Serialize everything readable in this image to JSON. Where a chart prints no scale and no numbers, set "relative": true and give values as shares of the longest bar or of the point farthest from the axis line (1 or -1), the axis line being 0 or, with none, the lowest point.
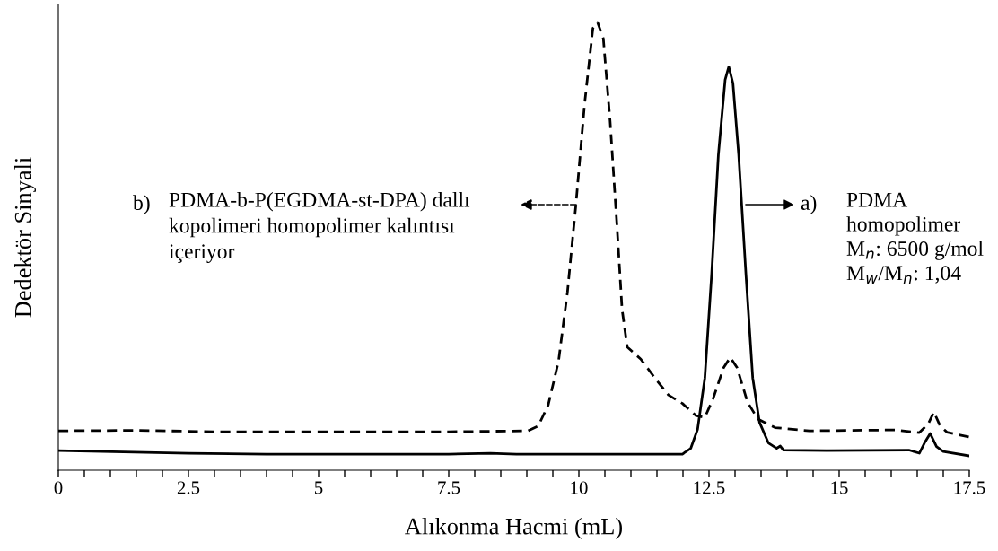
{
  "chart_data": {
    "type": "line",
    "relative": true,
    "xlabel": "Alıkonma Hacmi (mL)",
    "ylabel": "Dedektör Sinyali",
    "xlim": [
      0,
      17.5
    ],
    "xticks": [
      0,
      {
        "value": 0.5,
        "label": null
      },
      {
        "value": 1,
        "label": null
      },
      {
        "value": 1.5,
        "label": null
      },
      {
        "value": 2,
        "label": null
      },
      2.5,
      {
        "value": 3,
        "label": null
      },
      {
        "value": 3.5,
        "label": null
      },
      {
        "value": 4,
        "label": null
      },
      {
        "value": 4.5,
        "label": null
      },
      5,
      {
        "value": 5.5,
        "label": null
      },
      {
        "value": 6,
        "label": null
      },
      {
        "value": 6.5,
        "label": null
      },
      {
        "value": 7,
        "label": null
      },
      7.5,
      {
        "value": 8,
        "label": null
      },
      {
        "value": 8.5,
        "label": null
      },
      {
        "value": 9,
        "label": null
      },
      {
        "value": 9.5,
        "label": null
      },
      10,
      {
        "value": 10.5,
        "label": null
      },
      {
        "value": 11,
        "label": null
      },
      {
        "value": 11.5,
        "label": null
      },
      {
        "value": 12,
        "label": null
      },
      12.5,
      {
        "value": 13,
        "label": null
      },
      {
        "value": 13.5,
        "label": null
      },
      {
        "value": 14,
        "label": null
      },
      {
        "value": 14.5,
        "label": null
      },
      15,
      {
        "value": 15.5,
        "label": null
      },
      {
        "value": 16,
        "label": null
      },
      {
        "value": 16.5,
        "label": null
      },
      {
        "value": 17,
        "label": null
      },
      17.5
    ],
    "grid": false,
    "legend": false,
    "marker": "none",
    "tick_labels": "x",
    "series": [
      {
        "color": "#000000",
        "line_style": "dashed",
        "x": [
          0,
          1.5,
          3.0,
          5.0,
          7.5,
          9.02,
          9.22,
          9.41,
          9.61,
          9.78,
          9.94,
          10.11,
          10.27,
          10.36,
          10.47,
          10.6,
          10.73,
          10.83,
          10.93,
          11.19,
          11.46,
          11.72,
          11.99,
          12.25,
          12.42,
          12.58,
          12.78,
          12.91,
          13.04,
          13.24,
          13.44,
          13.77,
          14.43,
          16.08,
          16.54,
          16.71,
          16.82,
          16.94,
          17.07,
          17.5
        ],
        "values": [
          0.088,
          0.089,
          0.086,
          0.086,
          0.086,
          0.088,
          0.099,
          0.145,
          0.244,
          0.397,
          0.589,
          0.818,
          0.987,
          1.0,
          0.964,
          0.78,
          0.55,
          0.359,
          0.275,
          0.248,
          0.206,
          0.168,
          0.149,
          0.122,
          0.118,
          0.16,
          0.229,
          0.252,
          0.229,
          0.152,
          0.114,
          0.095,
          0.088,
          0.09,
          0.084,
          0.103,
          0.13,
          0.099,
          0.085,
          0.074
        ]
      },
      {
        "color": "#000000",
        "line_style": "solid",
        "x": [
          0,
          2.5,
          4.0,
          7.5,
          8.3,
          8.8,
          11.99,
          12.15,
          12.28,
          12.42,
          12.55,
          12.68,
          12.81,
          12.88,
          12.96,
          13.07,
          13.21,
          13.34,
          13.47,
          13.64,
          13.8,
          13.87,
          13.93,
          14.76,
          16.34,
          16.54,
          16.64,
          16.75,
          16.87,
          17.0,
          17.5
        ],
        "values": [
          0.044,
          0.038,
          0.036,
          0.036,
          0.038,
          0.036,
          0.036,
          0.049,
          0.091,
          0.206,
          0.436,
          0.704,
          0.872,
          0.901,
          0.864,
          0.704,
          0.436,
          0.206,
          0.107,
          0.061,
          0.049,
          0.054,
          0.045,
          0.044,
          0.045,
          0.038,
          0.061,
          0.082,
          0.053,
          0.042,
          0.032
        ]
      }
    ],
    "annotations": [
      "b)",
      "PDMA-b-P(EGDMA-st-DPA) dallı\nkopolimeri homopolimer kalıntısı\niçeriyor",
      "a)",
      "PDMA\nhomopolimer\nM$_{n}$: 6500 g/mol\nM$_{w}$/M$_{n}$: 1,04"
    ]
  }
}
